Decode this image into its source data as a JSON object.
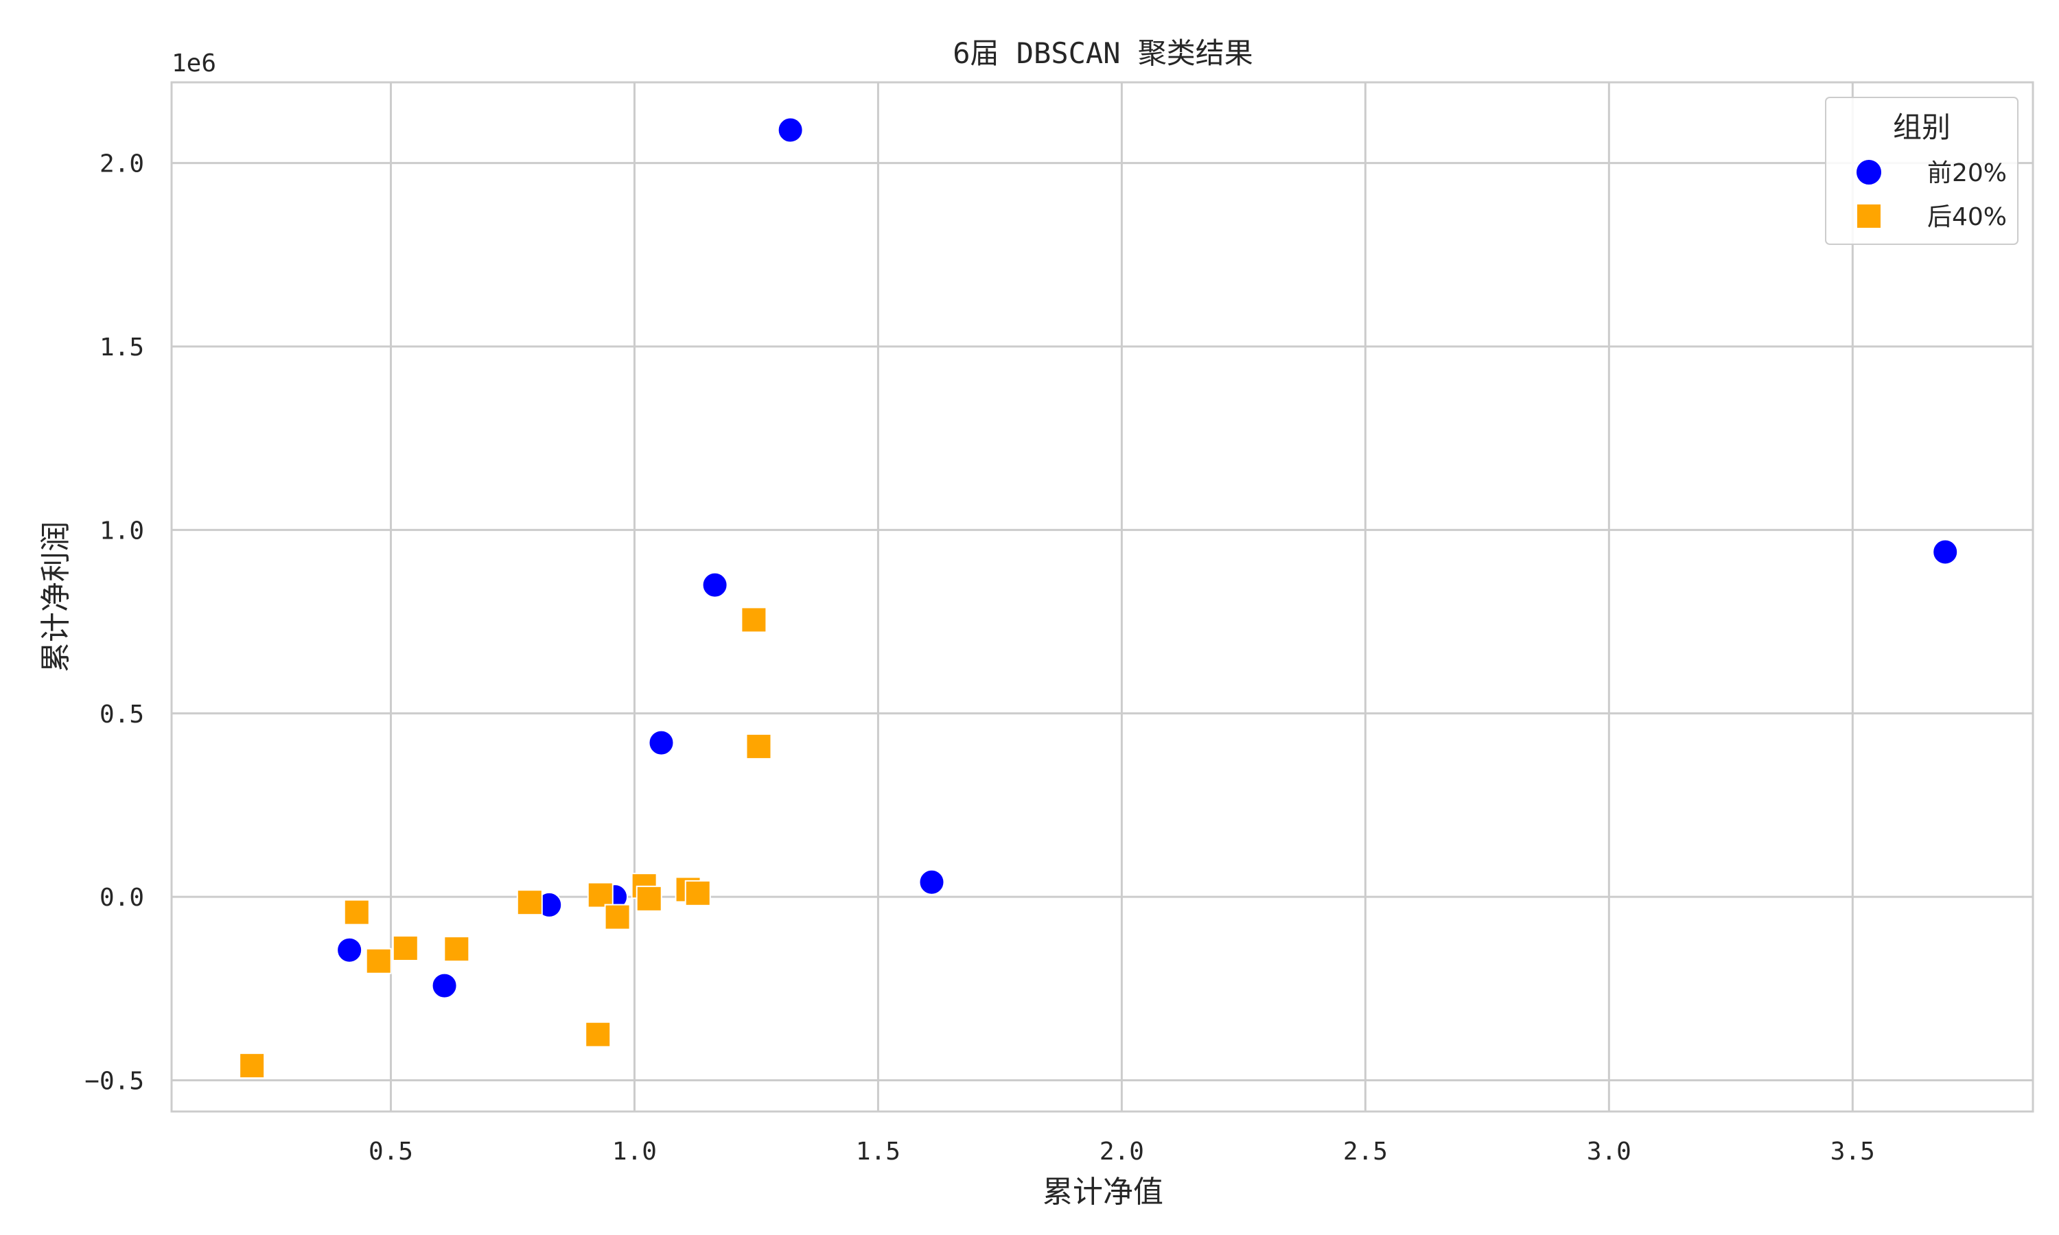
{
  "chart_data": {
    "type": "scatter",
    "title": "6届 DBSCAN 聚类结果",
    "xlabel": "累计净值",
    "ylabel": "累计净利润",
    "y_offset_label": "1e6",
    "xlim": [
      0.05,
      3.87
    ],
    "ylim": [
      -585000,
      2220000
    ],
    "x_ticks": [
      0.5,
      1.0,
      1.5,
      2.0,
      2.5,
      3.0,
      3.5
    ],
    "x_tick_labels": [
      "0.5",
      "1.0",
      "1.5",
      "2.0",
      "2.5",
      "3.0",
      "3.5"
    ],
    "y_ticks": [
      -500000,
      0,
      500000,
      1000000,
      1500000,
      2000000
    ],
    "y_tick_labels": [
      "−0.5",
      "0.0",
      "0.5",
      "1.0",
      "1.5",
      "2.0"
    ],
    "grid": true,
    "legend": {
      "title": "组别",
      "placement": "top-right"
    },
    "series": [
      {
        "name": "前20%",
        "marker": "circle",
        "color": "#0000ff",
        "points": [
          [
            1.32,
            2090000
          ],
          [
            3.69,
            940000
          ],
          [
            1.165,
            850000
          ],
          [
            1.055,
            420000
          ],
          [
            1.61,
            40000
          ],
          [
            0.825,
            -22000
          ],
          [
            0.415,
            -145000
          ],
          [
            0.61,
            -242000
          ],
          [
            0.96,
            0
          ],
          [
            1.03,
            5000
          ]
        ]
      },
      {
        "name": "后40%",
        "marker": "square",
        "color": "#ffa500",
        "points": [
          [
            1.245,
            755000
          ],
          [
            1.255,
            410000
          ],
          [
            0.43,
            -42000
          ],
          [
            0.475,
            -175000
          ],
          [
            0.53,
            -140000
          ],
          [
            0.635,
            -142000
          ],
          [
            0.785,
            -15000
          ],
          [
            0.93,
            5000
          ],
          [
            0.965,
            -55000
          ],
          [
            1.02,
            30000
          ],
          [
            1.03,
            -5000
          ],
          [
            1.11,
            20000
          ],
          [
            1.13,
            10000
          ],
          [
            0.925,
            -375000
          ],
          [
            0.215,
            -460000
          ]
        ]
      }
    ]
  }
}
